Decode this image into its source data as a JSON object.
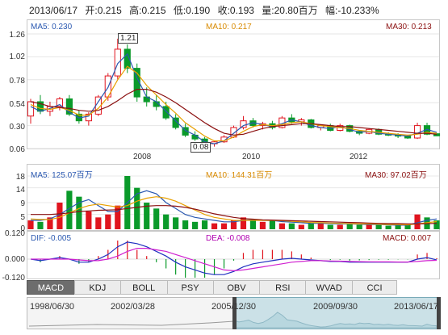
{
  "info": {
    "date": "2013/06/17",
    "open": "开:0.215",
    "high": "高:0.215",
    "low": "低:0.190",
    "close": "收:0.193",
    "volume": "量:20.80百万",
    "change": "幅:-10.233%"
  },
  "price_panel": {
    "ma5": "MA5: 0.230",
    "ma10": "MA10: 0.217",
    "ma30": "MA30: 0.213",
    "max_label": "1.21",
    "min_label": "0.08",
    "y_ticks": [
      "1.26",
      "1.02",
      "0.78",
      "0.54",
      "0.30",
      "0.06"
    ],
    "x_ticks": [
      "2008",
      "2010",
      "2012"
    ]
  },
  "volume_panel": {
    "ma5": "MA5: 125.07百万",
    "ma10": "MA10: 144.31百万",
    "ma30": "MA30: 97.02百万",
    "y_ticks": [
      "18",
      "14",
      "9",
      "5",
      "0"
    ]
  },
  "macd_panel": {
    "dif": "DIF: -0.005",
    "dea": "DEA: -0.008",
    "macd": "MACD: 0.007",
    "y_ticks": [
      "0.120",
      "0.000",
      "-0.120"
    ]
  },
  "tabs": [
    "MACD",
    "KDJ",
    "BOLL",
    "PSY",
    "OBV",
    "RSI",
    "WVAD",
    "CCI"
  ],
  "active_tab": "MACD",
  "navigator": {
    "dates": [
      "1998/06/30",
      "2002/03/28",
      "2005/12/30",
      "2009/09/30",
      "2013/06/17"
    ]
  },
  "colors": {
    "up": "#e0141e",
    "down": "#0a9a2a",
    "ma5": "#2a58b0",
    "ma10": "#e8a000",
    "ma30": "#8b1010",
    "dif": "#2030c0",
    "dea": "#d020d0"
  },
  "chart_data": [
    {
      "type": "candlestick",
      "title": "",
      "ylim": [
        0.06,
        1.26
      ],
      "x_range": [
        "2006",
        "2013/06"
      ],
      "series": [
        {
          "name": "MA5",
          "values": [
            0.5,
            0.45,
            0.48,
            0.52,
            0.44,
            0.38,
            0.4,
            0.55,
            0.7,
            0.95,
            1.05,
            0.8,
            0.6,
            0.55,
            0.45,
            0.35,
            0.25,
            0.2,
            0.13,
            0.11,
            0.14,
            0.22,
            0.3,
            0.33,
            0.31,
            0.29,
            0.32,
            0.36,
            0.34,
            0.3,
            0.28,
            0.27,
            0.29,
            0.26,
            0.23,
            0.24,
            0.22,
            0.21,
            0.2,
            0.19,
            0.22,
            0.26,
            0.23
          ]
        },
        {
          "name": "MA10",
          "values": [
            0.52,
            0.48,
            0.47,
            0.49,
            0.46,
            0.41,
            0.41,
            0.48,
            0.6,
            0.78,
            0.92,
            0.85,
            0.72,
            0.62,
            0.52,
            0.43,
            0.33,
            0.26,
            0.19,
            0.14,
            0.14,
            0.18,
            0.24,
            0.29,
            0.31,
            0.3,
            0.31,
            0.33,
            0.34,
            0.32,
            0.3,
            0.29,
            0.28,
            0.27,
            0.25,
            0.24,
            0.23,
            0.22,
            0.21,
            0.2,
            0.21,
            0.23,
            0.22
          ]
        },
        {
          "name": "MA30",
          "values": [
            0.55,
            0.53,
            0.5,
            0.49,
            0.48,
            0.46,
            0.45,
            0.46,
            0.5,
            0.56,
            0.63,
            0.68,
            0.68,
            0.65,
            0.6,
            0.54,
            0.47,
            0.4,
            0.33,
            0.27,
            0.22,
            0.2,
            0.21,
            0.24,
            0.27,
            0.29,
            0.3,
            0.31,
            0.32,
            0.32,
            0.31,
            0.3,
            0.29,
            0.29,
            0.28,
            0.27,
            0.26,
            0.25,
            0.24,
            0.23,
            0.22,
            0.22,
            0.21
          ]
        }
      ],
      "candles": [
        [
          0.4,
          0.58,
          0.32,
          0.55
        ],
        [
          0.55,
          0.62,
          0.42,
          0.45
        ],
        [
          0.45,
          0.55,
          0.4,
          0.5
        ],
        [
          0.5,
          0.6,
          0.46,
          0.58
        ],
        [
          0.58,
          0.62,
          0.4,
          0.42
        ],
        [
          0.42,
          0.46,
          0.32,
          0.35
        ],
        [
          0.35,
          0.44,
          0.3,
          0.42
        ],
        [
          0.42,
          0.62,
          0.4,
          0.6
        ],
        [
          0.6,
          0.85,
          0.56,
          0.82
        ],
        [
          0.82,
          1.21,
          0.78,
          1.1
        ],
        [
          1.1,
          1.15,
          0.85,
          0.9
        ],
        [
          0.9,
          0.95,
          0.55,
          0.6
        ],
        [
          0.6,
          0.7,
          0.5,
          0.55
        ],
        [
          0.55,
          0.62,
          0.46,
          0.5
        ],
        [
          0.5,
          0.55,
          0.36,
          0.38
        ],
        [
          0.38,
          0.42,
          0.26,
          0.28
        ],
        [
          0.28,
          0.32,
          0.18,
          0.2
        ],
        [
          0.2,
          0.24,
          0.14,
          0.16
        ],
        [
          0.16,
          0.18,
          0.09,
          0.11
        ],
        [
          0.11,
          0.14,
          0.08,
          0.13
        ],
        [
          0.13,
          0.2,
          0.12,
          0.18
        ],
        [
          0.18,
          0.3,
          0.17,
          0.28
        ],
        [
          0.28,
          0.4,
          0.26,
          0.35
        ],
        [
          0.35,
          0.38,
          0.28,
          0.3
        ],
        [
          0.3,
          0.34,
          0.26,
          0.32
        ],
        [
          0.32,
          0.35,
          0.26,
          0.28
        ],
        [
          0.28,
          0.4,
          0.27,
          0.38
        ],
        [
          0.38,
          0.42,
          0.32,
          0.34
        ],
        [
          0.34,
          0.38,
          0.3,
          0.36
        ],
        [
          0.36,
          0.37,
          0.27,
          0.28
        ],
        [
          0.28,
          0.31,
          0.25,
          0.3
        ],
        [
          0.3,
          0.32,
          0.24,
          0.25
        ],
        [
          0.25,
          0.32,
          0.24,
          0.3
        ],
        [
          0.3,
          0.31,
          0.23,
          0.24
        ],
        [
          0.24,
          0.25,
          0.2,
          0.22
        ],
        [
          0.22,
          0.27,
          0.21,
          0.26
        ],
        [
          0.26,
          0.27,
          0.2,
          0.21
        ],
        [
          0.21,
          0.23,
          0.19,
          0.2
        ],
        [
          0.2,
          0.22,
          0.17,
          0.19
        ],
        [
          0.19,
          0.2,
          0.16,
          0.17
        ],
        [
          0.17,
          0.33,
          0.16,
          0.3
        ],
        [
          0.3,
          0.33,
          0.2,
          0.21
        ],
        [
          0.215,
          0.215,
          0.19,
          0.193
        ]
      ]
    },
    {
      "type": "bar",
      "title": "",
      "ylim": [
        0,
        18
      ],
      "values": [
        3,
        2.5,
        4,
        9,
        13,
        11,
        6,
        4,
        5,
        8,
        18,
        14,
        9,
        7,
        5,
        4,
        3,
        2.5,
        3,
        2,
        2,
        3,
        4,
        3,
        2.5,
        3,
        2,
        2,
        1.5,
        2,
        2,
        1.5,
        1.5,
        2,
        1.5,
        1.5,
        1.5,
        1.2,
        1.3,
        1.5,
        5,
        4,
        3
      ],
      "series": [
        {
          "name": "MA5",
          "values": [
            3,
            3,
            3.5,
            5,
            7,
            9,
            10,
            8,
            6,
            6,
            9,
            12,
            13,
            12,
            9,
            7,
            5,
            4,
            3.5,
            3,
            2.5,
            2.5,
            3,
            3.2,
            3,
            3,
            2.6,
            2.4,
            2.2,
            2,
            2,
            1.9,
            1.8,
            1.8,
            1.7,
            1.6,
            1.6,
            1.5,
            1.4,
            1.4,
            2.2,
            3,
            3.5
          ]
        },
        {
          "name": "MA10",
          "values": [
            3.5,
            3.3,
            3.3,
            4,
            5.5,
            7,
            8,
            8.5,
            8,
            7.5,
            8,
            9.5,
            10.5,
            11,
            10.5,
            9.5,
            8,
            6.5,
            5,
            4,
            3.5,
            3,
            3,
            3,
            3,
            3,
            2.9,
            2.7,
            2.5,
            2.3,
            2.2,
            2.1,
            2,
            1.9,
            1.8,
            1.8,
            1.7,
            1.6,
            1.6,
            1.5,
            1.8,
            2.2,
            2.6
          ]
        },
        {
          "name": "MA30",
          "values": [
            5,
            5,
            5,
            5.2,
            5.5,
            6,
            6.2,
            6.4,
            6.5,
            6.6,
            7,
            7.4,
            7.8,
            8,
            8,
            7.8,
            7.4,
            6.8,
            6,
            5.2,
            4.6,
            4,
            3.6,
            3.4,
            3.2,
            3.1,
            3,
            2.9,
            2.8,
            2.7,
            2.6,
            2.5,
            2.4,
            2.3,
            2.2,
            2.1,
            2,
            1.9,
            1.9,
            1.8,
            1.8,
            1.9,
            2
          ]
        }
      ]
    },
    {
      "type": "line",
      "title": "",
      "ylim": [
        -0.12,
        0.12
      ],
      "series": [
        {
          "name": "DIF",
          "values": [
            0.0,
            -0.01,
            0.0,
            0.01,
            0.0,
            -0.02,
            -0.02,
            0.0,
            0.03,
            0.08,
            0.11,
            0.1,
            0.08,
            0.05,
            0.02,
            -0.02,
            -0.05,
            -0.07,
            -0.09,
            -0.1,
            -0.1,
            -0.08,
            -0.05,
            -0.03,
            -0.02,
            -0.01,
            0.0,
            0.005,
            0.0,
            -0.005,
            -0.01,
            -0.015,
            -0.015,
            -0.02,
            -0.02,
            -0.02,
            -0.02,
            -0.02,
            -0.02,
            -0.02,
            0.0,
            0.01,
            -0.005
          ]
        },
        {
          "name": "DEA",
          "values": [
            0.0,
            0.0,
            0.0,
            0.0,
            0.0,
            -0.005,
            -0.01,
            -0.01,
            0.0,
            0.02,
            0.05,
            0.07,
            0.07,
            0.06,
            0.05,
            0.03,
            0.01,
            -0.01,
            -0.03,
            -0.05,
            -0.07,
            -0.075,
            -0.07,
            -0.06,
            -0.05,
            -0.04,
            -0.03,
            -0.02,
            -0.015,
            -0.01,
            -0.01,
            -0.012,
            -0.013,
            -0.015,
            -0.016,
            -0.017,
            -0.018,
            -0.018,
            -0.019,
            -0.019,
            -0.015,
            -0.01,
            -0.008
          ]
        }
      ]
    }
  ]
}
